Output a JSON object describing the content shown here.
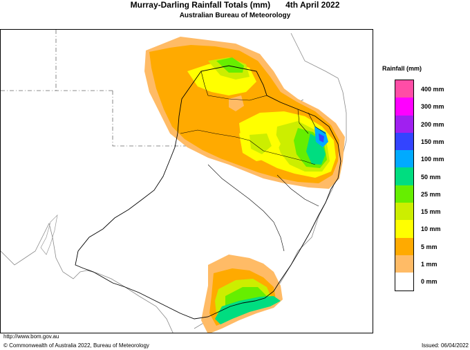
{
  "header": {
    "title": "Murray-Darling Rainfall Totals (mm)",
    "date": "4th April 2022",
    "subtitle": "Australian Bureau of Meteorology"
  },
  "footer": {
    "website": "http://www.bom.gov.au",
    "copyright": "© Commonwealth of Australia 2022, Bureau of Meteorology",
    "issued": "Issued: 06/04/2022"
  },
  "legend": {
    "title": "Rainfall (mm)",
    "items": [
      {
        "label": "400 mm",
        "color": "#ff4da6"
      },
      {
        "label": "300 mm",
        "color": "#ff00ff"
      },
      {
        "label": "200 mm",
        "color": "#a020f0"
      },
      {
        "label": "150 mm",
        "color": "#3344ff"
      },
      {
        "label": "100 mm",
        "color": "#00aaff"
      },
      {
        "label": "50 mm",
        "color": "#00dd80"
      },
      {
        "label": "25 mm",
        "color": "#66ee00"
      },
      {
        "label": "15 mm",
        "color": "#ccee00"
      },
      {
        "label": "10 mm",
        "color": "#ffff00"
      },
      {
        "label": "5 mm",
        "color": "#ffaa00"
      },
      {
        "label": "1 mm",
        "color": "#ffbb66"
      },
      {
        "label": "0 mm",
        "color": "#ffffff"
      }
    ]
  }
}
